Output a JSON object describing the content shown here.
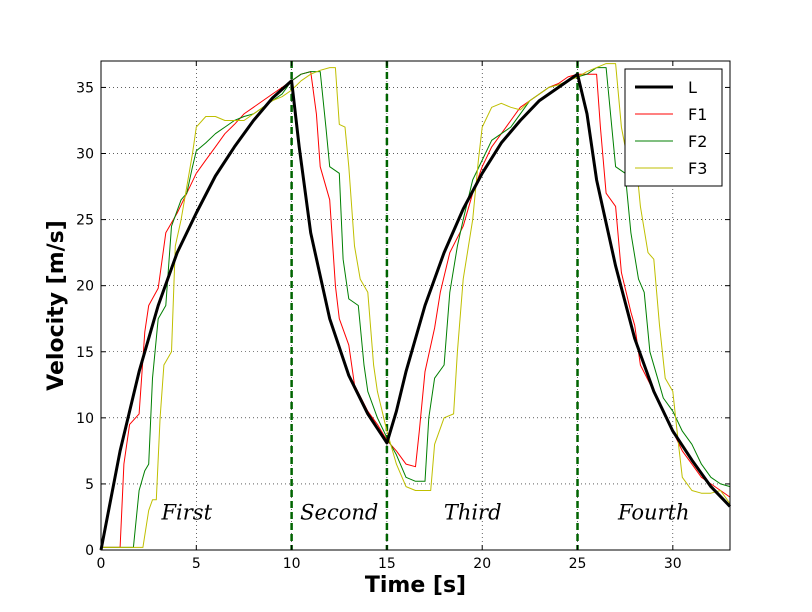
{
  "chart_data": {
    "type": "line",
    "title": "",
    "xlabel": "Time [s]",
    "ylabel": "Velocity [m/s]",
    "xlim": [
      0,
      33
    ],
    "ylim": [
      0,
      37
    ],
    "xticks": [
      0,
      5,
      10,
      15,
      20,
      25,
      30
    ],
    "yticks": [
      0,
      5,
      10,
      15,
      20,
      25,
      30,
      35
    ],
    "grid": true,
    "legend_position": "top-right",
    "phase_boundaries": [
      10,
      15,
      25
    ],
    "phase_boundary_color": "#006400",
    "phases": [
      {
        "label": "First",
        "x": 4.5
      },
      {
        "label": "Second",
        "x": 12.5
      },
      {
        "label": "Third",
        "x": 19.5
      },
      {
        "label": "Fourth",
        "x": 29.0
      }
    ],
    "series": [
      {
        "name": "L",
        "color": "#000000",
        "width": 3,
        "points": [
          [
            0,
            0
          ],
          [
            1,
            7.5
          ],
          [
            2,
            13.5
          ],
          [
            3,
            18.5
          ],
          [
            4,
            22.5
          ],
          [
            5,
            25.5
          ],
          [
            6,
            28.3
          ],
          [
            7,
            30.5
          ],
          [
            8,
            32.5
          ],
          [
            9,
            34.2
          ],
          [
            10,
            35.5
          ],
          [
            10.4,
            30.5
          ],
          [
            11,
            24
          ],
          [
            12,
            17.5
          ],
          [
            13,
            13.2
          ],
          [
            14,
            10.3
          ],
          [
            15,
            8.1
          ],
          [
            15.5,
            10.5
          ],
          [
            16,
            13.5
          ],
          [
            17,
            18.5
          ],
          [
            18,
            22.5
          ],
          [
            19,
            25.8
          ],
          [
            20,
            28.5
          ],
          [
            21,
            30.8
          ],
          [
            22,
            32.5
          ],
          [
            23,
            34
          ],
          [
            24,
            35
          ],
          [
            25,
            36
          ],
          [
            25.5,
            33
          ],
          [
            26,
            28
          ],
          [
            27,
            21.5
          ],
          [
            28,
            16
          ],
          [
            29,
            12
          ],
          [
            30,
            9
          ],
          [
            31,
            6.8
          ],
          [
            32,
            4.8
          ],
          [
            33,
            3.3
          ]
        ]
      },
      {
        "name": "F1",
        "color": "#ff0000",
        "width": 1,
        "points": [
          [
            0,
            0.2
          ],
          [
            1,
            0.2
          ],
          [
            1.2,
            6.5
          ],
          [
            1.5,
            9.5
          ],
          [
            2,
            10.3
          ],
          [
            2.3,
            16.5
          ],
          [
            2.5,
            18.5
          ],
          [
            3,
            19.8
          ],
          [
            3.4,
            24
          ],
          [
            4,
            25.5
          ],
          [
            4.5,
            27
          ],
          [
            5,
            28.5
          ],
          [
            5.5,
            29.5
          ],
          [
            6,
            30.5
          ],
          [
            6.5,
            31.5
          ],
          [
            7,
            32.2
          ],
          [
            7.5,
            33
          ],
          [
            8,
            33.5
          ],
          [
            8.5,
            34
          ],
          [
            9,
            34.5
          ],
          [
            9.5,
            35
          ],
          [
            10,
            35.5
          ],
          [
            10.5,
            36
          ],
          [
            11,
            36.2
          ],
          [
            11.3,
            33
          ],
          [
            11.5,
            29
          ],
          [
            12,
            26.5
          ],
          [
            12.3,
            20
          ],
          [
            12.5,
            17.5
          ],
          [
            13,
            15.5
          ],
          [
            13.3,
            12.5
          ],
          [
            14,
            10.5
          ],
          [
            14.5,
            9.5
          ],
          [
            15,
            8.3
          ],
          [
            15.5,
            7.5
          ],
          [
            16,
            6.5
          ],
          [
            16.5,
            6.3
          ],
          [
            16.7,
            9
          ],
          [
            17,
            13.5
          ],
          [
            17.5,
            16.8
          ],
          [
            17.8,
            19.5
          ],
          [
            18.3,
            22.5
          ],
          [
            19,
            24.5
          ],
          [
            19.5,
            27
          ],
          [
            20,
            29
          ],
          [
            20.5,
            30.5
          ],
          [
            21,
            31.5
          ],
          [
            21.5,
            32.5
          ],
          [
            22,
            33.5
          ],
          [
            22.5,
            34
          ],
          [
            23,
            34.5
          ],
          [
            23.5,
            35
          ],
          [
            24,
            35.3
          ],
          [
            24.5,
            35.8
          ],
          [
            25,
            36
          ],
          [
            25.5,
            36
          ],
          [
            26,
            36
          ],
          [
            26.2,
            32
          ],
          [
            26.5,
            27
          ],
          [
            27,
            26
          ],
          [
            27.3,
            21
          ],
          [
            27.8,
            18
          ],
          [
            28,
            17
          ],
          [
            28.3,
            14
          ],
          [
            29,
            12
          ],
          [
            29.5,
            10.5
          ],
          [
            30,
            9
          ],
          [
            30.5,
            7.5
          ],
          [
            31,
            6.5
          ],
          [
            31.5,
            5.5
          ],
          [
            32,
            5
          ],
          [
            32.5,
            4.5
          ],
          [
            33,
            4
          ]
        ]
      },
      {
        "name": "F2",
        "color": "#007f00",
        "width": 1,
        "points": [
          [
            0,
            0.2
          ],
          [
            1.7,
            0.2
          ],
          [
            2,
            4.5
          ],
          [
            2.3,
            6
          ],
          [
            2.5,
            6.5
          ],
          [
            2.7,
            13
          ],
          [
            3,
            17.5
          ],
          [
            3.4,
            18.5
          ],
          [
            3.7,
            24.5
          ],
          [
            4.2,
            26.5
          ],
          [
            4.5,
            27
          ],
          [
            4.8,
            29
          ],
          [
            5,
            30.2
          ],
          [
            5.5,
            30.8
          ],
          [
            6,
            31.5
          ],
          [
            6.5,
            32
          ],
          [
            7,
            32.5
          ],
          [
            7.5,
            32.8
          ],
          [
            8,
            33
          ],
          [
            8.5,
            33.5
          ],
          [
            9,
            34
          ],
          [
            9.5,
            34.5
          ],
          [
            10,
            35.5
          ],
          [
            10.5,
            36
          ],
          [
            11,
            36.2
          ],
          [
            11.5,
            36.2
          ],
          [
            11.8,
            32
          ],
          [
            12,
            29
          ],
          [
            12.5,
            28.5
          ],
          [
            12.7,
            22
          ],
          [
            13,
            19
          ],
          [
            13.5,
            18.5
          ],
          [
            13.8,
            14
          ],
          [
            14,
            12
          ],
          [
            14.5,
            10
          ],
          [
            15,
            8.5
          ],
          [
            15.5,
            7.2
          ],
          [
            16,
            5.5
          ],
          [
            16.5,
            5.2
          ],
          [
            17,
            5.2
          ],
          [
            17.2,
            10
          ],
          [
            17.5,
            13
          ],
          [
            18,
            14
          ],
          [
            18.3,
            19.5
          ],
          [
            18.7,
            23
          ],
          [
            19,
            25
          ],
          [
            19.5,
            28
          ],
          [
            20,
            29.5
          ],
          [
            20.5,
            31
          ],
          [
            21,
            31.5
          ],
          [
            21.5,
            32
          ],
          [
            22,
            33
          ],
          [
            22.5,
            34
          ],
          [
            23,
            34.5
          ],
          [
            23.5,
            35
          ],
          [
            24,
            35.2
          ],
          [
            24.5,
            35.5
          ],
          [
            25,
            35.8
          ],
          [
            25.5,
            36
          ],
          [
            26,
            36.5
          ],
          [
            26.5,
            36.5
          ],
          [
            26.8,
            32
          ],
          [
            27,
            29
          ],
          [
            27.5,
            28.5
          ],
          [
            27.8,
            24
          ],
          [
            28.2,
            20.5
          ],
          [
            28.5,
            19.5
          ],
          [
            28.8,
            15
          ],
          [
            29.2,
            13
          ],
          [
            29.5,
            11.5
          ],
          [
            30,
            10.5
          ],
          [
            30.5,
            9
          ],
          [
            31,
            8
          ],
          [
            31.5,
            6.5
          ],
          [
            32,
            5.5
          ],
          [
            32.5,
            5
          ],
          [
            33,
            4.8
          ]
        ]
      },
      {
        "name": "F3",
        "color": "#bfbf00",
        "width": 1,
        "points": [
          [
            0,
            0.2
          ],
          [
            2.2,
            0.2
          ],
          [
            2.5,
            3
          ],
          [
            2.7,
            3.8
          ],
          [
            2.9,
            3.8
          ],
          [
            3.1,
            10
          ],
          [
            3.3,
            14
          ],
          [
            3.7,
            15
          ],
          [
            3.9,
            23
          ],
          [
            4.2,
            25
          ],
          [
            4.5,
            27.5
          ],
          [
            4.8,
            30
          ],
          [
            5,
            32
          ],
          [
            5.5,
            32.8
          ],
          [
            6,
            32.8
          ],
          [
            6.5,
            32.5
          ],
          [
            7,
            32.5
          ],
          [
            7.5,
            32.5
          ],
          [
            8,
            33
          ],
          [
            8.5,
            33.5
          ],
          [
            9,
            34
          ],
          [
            9.5,
            34.3
          ],
          [
            10,
            34.8
          ],
          [
            10.5,
            35.5
          ],
          [
            11,
            36
          ],
          [
            11.5,
            36.3
          ],
          [
            12,
            36.5
          ],
          [
            12.3,
            36.5
          ],
          [
            12.5,
            32.2
          ],
          [
            12.8,
            32
          ],
          [
            13,
            29
          ],
          [
            13.3,
            23
          ],
          [
            13.6,
            20.5
          ],
          [
            14,
            19.5
          ],
          [
            14.3,
            14
          ],
          [
            14.5,
            12
          ],
          [
            15,
            9
          ],
          [
            15.5,
            6.5
          ],
          [
            16,
            4.8
          ],
          [
            16.5,
            4.5
          ],
          [
            17,
            4.5
          ],
          [
            17.3,
            4.5
          ],
          [
            17.5,
            8
          ],
          [
            18,
            10
          ],
          [
            18.5,
            10.3
          ],
          [
            18.7,
            15
          ],
          [
            19,
            20.5
          ],
          [
            19.5,
            25
          ],
          [
            19.8,
            29.5
          ],
          [
            20,
            32
          ],
          [
            20.5,
            33.5
          ],
          [
            21,
            33.8
          ],
          [
            21.5,
            33.5
          ],
          [
            22,
            33.3
          ],
          [
            22.5,
            34
          ],
          [
            23,
            34.5
          ],
          [
            23.5,
            35
          ],
          [
            24,
            35.2
          ],
          [
            24.5,
            35.5
          ],
          [
            25,
            35.8
          ],
          [
            25.5,
            36.2
          ],
          [
            26,
            36.5
          ],
          [
            26.5,
            36.8
          ],
          [
            27,
            36.8
          ],
          [
            27.3,
            32
          ],
          [
            27.5,
            30.5
          ],
          [
            28,
            30.5
          ],
          [
            28.3,
            26
          ],
          [
            28.7,
            22.5
          ],
          [
            29,
            22
          ],
          [
            29.3,
            17
          ],
          [
            29.6,
            13
          ],
          [
            30,
            12
          ],
          [
            30.3,
            8
          ],
          [
            30.5,
            5.5
          ],
          [
            31,
            4.5
          ],
          [
            31.5,
            4.3
          ],
          [
            32,
            4.3
          ],
          [
            32.5,
            4.5
          ],
          [
            33,
            3.5
          ]
        ]
      }
    ]
  }
}
